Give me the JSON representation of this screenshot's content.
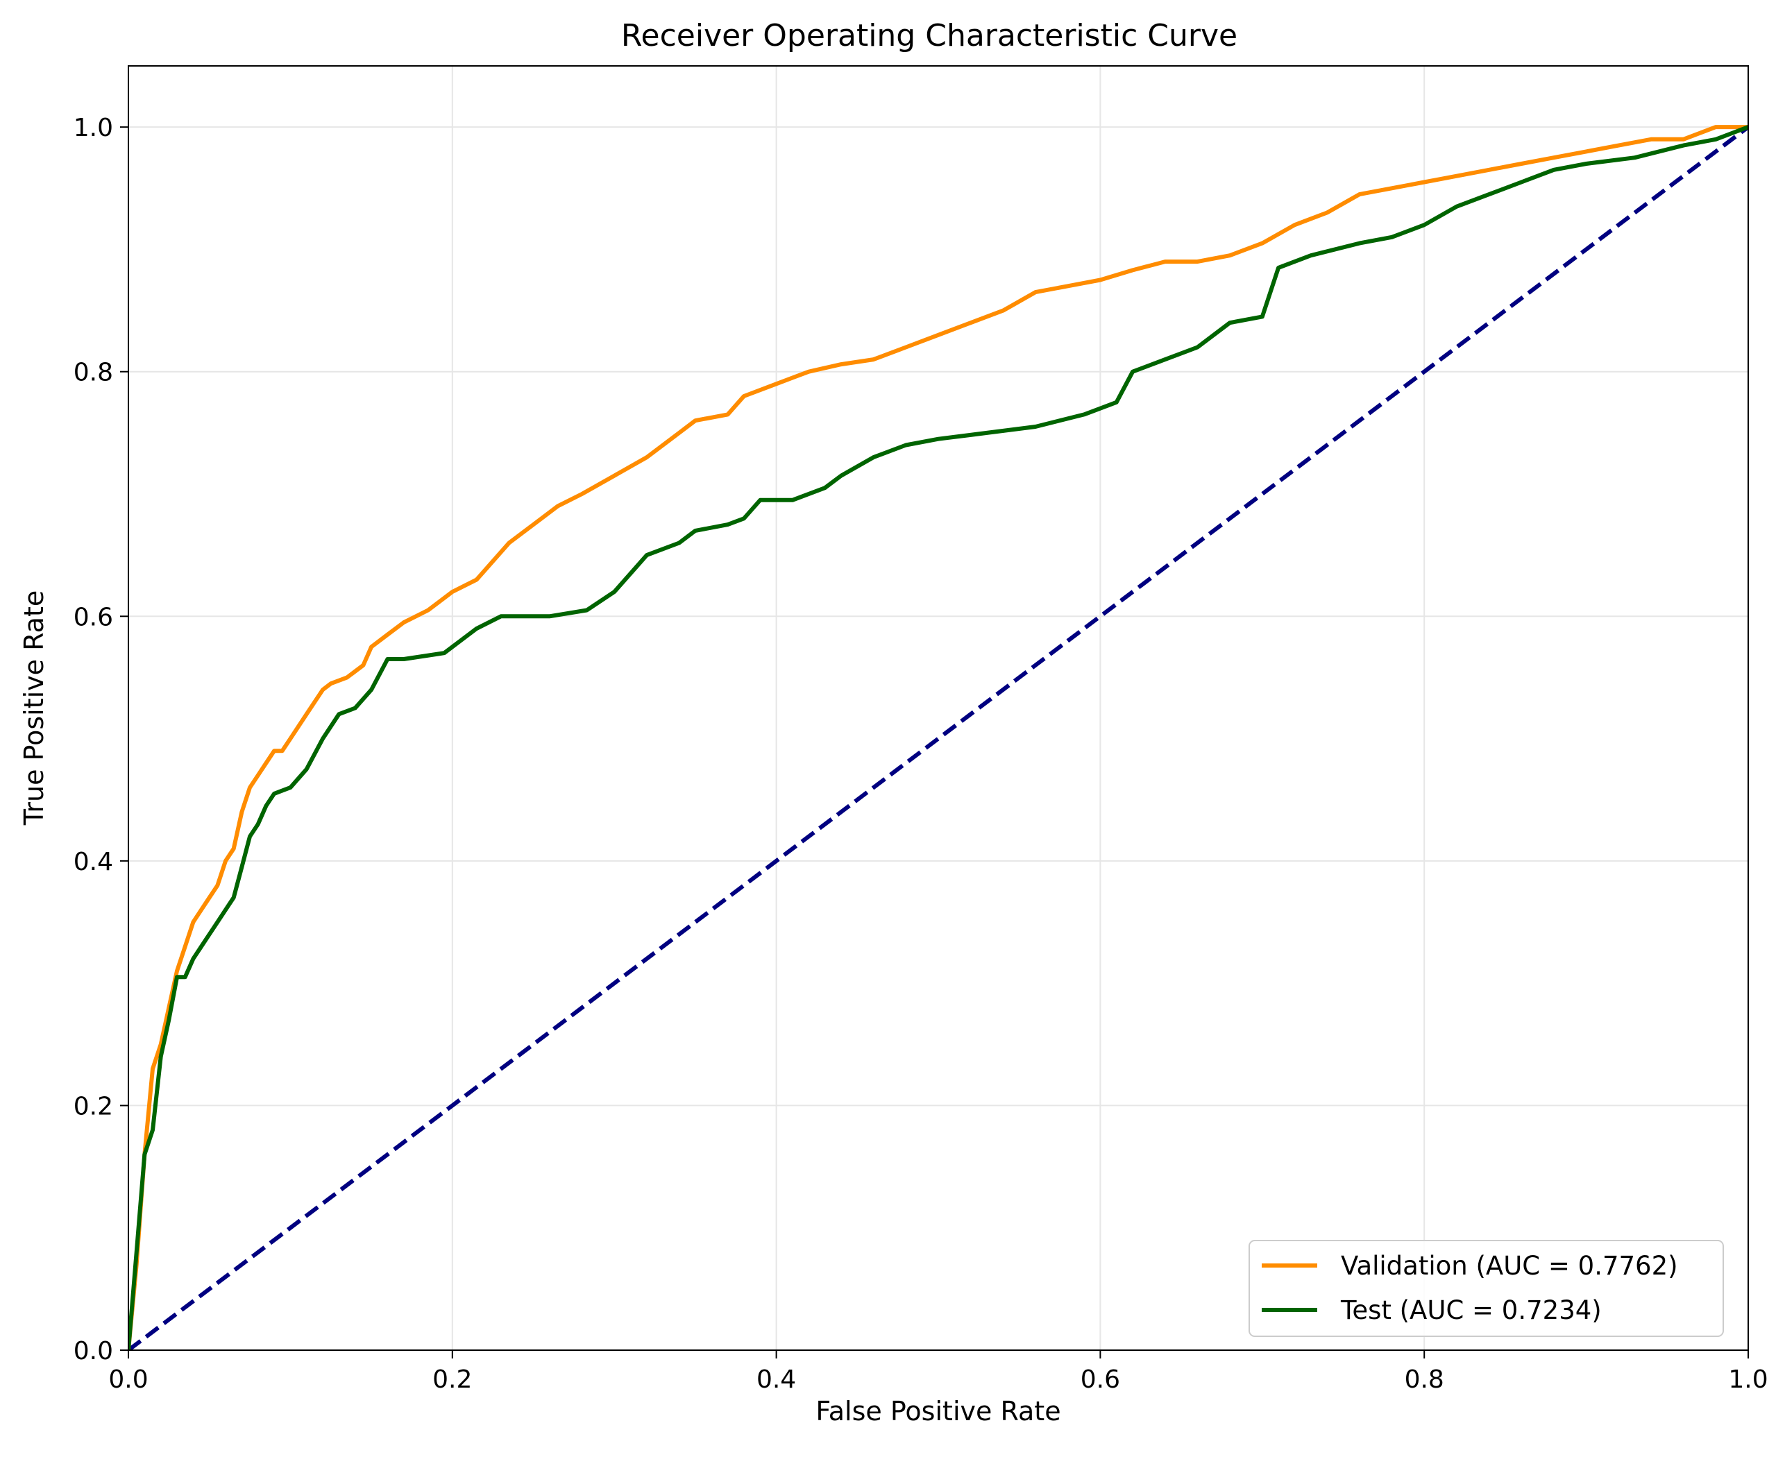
{
  "chart_data": {
    "type": "line",
    "title": "Receiver Operating Characteristic Curve",
    "xlabel": "False Positive Rate",
    "ylabel": "True Positive Rate",
    "xlim": [
      0.0,
      1.0
    ],
    "ylim": [
      0.0,
      1.05
    ],
    "xticks": [
      0.0,
      0.2,
      0.4,
      0.6,
      0.8,
      1.0
    ],
    "yticks": [
      0.0,
      0.2,
      0.4,
      0.6,
      0.8,
      1.0
    ],
    "xtick_labels": [
      "0.0",
      "0.2",
      "0.4",
      "0.6",
      "0.8",
      "1.0"
    ],
    "ytick_labels": [
      "0.0",
      "0.2",
      "0.4",
      "0.6",
      "0.8",
      "1.0"
    ],
    "grid": true,
    "legend_position": "bottom-right",
    "series": [
      {
        "name": "Validation (AUC = 0.7762)",
        "color": "#ff8c00",
        "style": "solid",
        "x": [
          0.0,
          0.005,
          0.01,
          0.015,
          0.02,
          0.025,
          0.03,
          0.035,
          0.04,
          0.045,
          0.05,
          0.055,
          0.06,
          0.065,
          0.07,
          0.075,
          0.08,
          0.085,
          0.09,
          0.095,
          0.1,
          0.11,
          0.12,
          0.125,
          0.135,
          0.145,
          0.15,
          0.16,
          0.17,
          0.185,
          0.2,
          0.215,
          0.225,
          0.235,
          0.25,
          0.265,
          0.28,
          0.3,
          0.32,
          0.34,
          0.35,
          0.37,
          0.38,
          0.4,
          0.42,
          0.44,
          0.46,
          0.48,
          0.5,
          0.52,
          0.54,
          0.56,
          0.58,
          0.6,
          0.62,
          0.64,
          0.66,
          0.68,
          0.7,
          0.72,
          0.74,
          0.76,
          0.78,
          0.8,
          0.82,
          0.84,
          0.86,
          0.88,
          0.9,
          0.92,
          0.94,
          0.96,
          0.98,
          1.0
        ],
        "y": [
          0.0,
          0.07,
          0.16,
          0.23,
          0.25,
          0.28,
          0.31,
          0.33,
          0.35,
          0.36,
          0.37,
          0.38,
          0.4,
          0.41,
          0.44,
          0.46,
          0.47,
          0.48,
          0.49,
          0.49,
          0.5,
          0.52,
          0.54,
          0.545,
          0.55,
          0.56,
          0.575,
          0.585,
          0.595,
          0.605,
          0.62,
          0.63,
          0.645,
          0.66,
          0.675,
          0.69,
          0.7,
          0.715,
          0.73,
          0.75,
          0.76,
          0.765,
          0.78,
          0.79,
          0.8,
          0.806,
          0.81,
          0.82,
          0.83,
          0.84,
          0.85,
          0.865,
          0.87,
          0.875,
          0.883,
          0.89,
          0.89,
          0.895,
          0.905,
          0.92,
          0.93,
          0.945,
          0.95,
          0.955,
          0.96,
          0.965,
          0.97,
          0.975,
          0.98,
          0.985,
          0.99,
          0.99,
          1.0,
          1.0
        ]
      },
      {
        "name": "Test (AUC = 0.7234)",
        "color": "#006400",
        "style": "solid",
        "x": [
          0.0,
          0.005,
          0.01,
          0.015,
          0.02,
          0.025,
          0.03,
          0.035,
          0.04,
          0.045,
          0.05,
          0.055,
          0.06,
          0.065,
          0.07,
          0.075,
          0.08,
          0.085,
          0.09,
          0.1,
          0.11,
          0.12,
          0.13,
          0.14,
          0.15,
          0.16,
          0.17,
          0.195,
          0.205,
          0.215,
          0.23,
          0.26,
          0.283,
          0.3,
          0.31,
          0.32,
          0.34,
          0.35,
          0.37,
          0.38,
          0.39,
          0.41,
          0.43,
          0.44,
          0.46,
          0.48,
          0.5,
          0.53,
          0.56,
          0.59,
          0.61,
          0.62,
          0.64,
          0.66,
          0.68,
          0.7,
          0.71,
          0.73,
          0.76,
          0.78,
          0.8,
          0.82,
          0.84,
          0.86,
          0.88,
          0.9,
          0.93,
          0.96,
          0.98,
          1.0
        ],
        "y": [
          0.0,
          0.08,
          0.16,
          0.18,
          0.24,
          0.27,
          0.305,
          0.305,
          0.32,
          0.33,
          0.34,
          0.35,
          0.36,
          0.37,
          0.395,
          0.42,
          0.43,
          0.445,
          0.455,
          0.46,
          0.475,
          0.5,
          0.52,
          0.525,
          0.54,
          0.565,
          0.565,
          0.57,
          0.58,
          0.59,
          0.6,
          0.6,
          0.605,
          0.62,
          0.635,
          0.65,
          0.66,
          0.67,
          0.675,
          0.68,
          0.695,
          0.695,
          0.705,
          0.715,
          0.73,
          0.74,
          0.745,
          0.75,
          0.755,
          0.765,
          0.775,
          0.8,
          0.81,
          0.82,
          0.84,
          0.845,
          0.885,
          0.895,
          0.905,
          0.91,
          0.92,
          0.935,
          0.945,
          0.955,
          0.965,
          0.97,
          0.975,
          0.985,
          0.99,
          1.0
        ]
      },
      {
        "color": "#000080",
        "style": "dashed",
        "x": [
          0.0,
          1.0
        ],
        "y": [
          0.0,
          1.0
        ]
      }
    ]
  }
}
